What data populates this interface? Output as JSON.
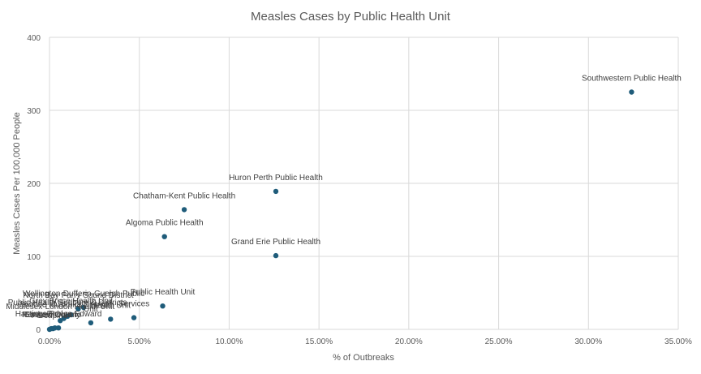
{
  "chart_data": {
    "type": "scatter",
    "title": "Measles Cases by Public Health Unit",
    "xlabel": "% of Outbreaks",
    "ylabel": "Measles Cases Per 100,000 People",
    "xlim": [
      0,
      0.35
    ],
    "ylim": [
      0,
      400
    ],
    "x_ticks": [
      0,
      0.05,
      0.1,
      0.15,
      0.2,
      0.25,
      0.3,
      0.35
    ],
    "x_tick_labels": [
      "0.00%",
      "5.00%",
      "10.00%",
      "15.00%",
      "20.00%",
      "25.00%",
      "30.00%",
      "35.00%"
    ],
    "y_ticks": [
      0,
      100,
      200,
      300,
      400
    ],
    "y_tick_labels": [
      "0",
      "100",
      "200",
      "300",
      "400"
    ],
    "grid": "vertical and horizontal",
    "marker_color": "#1f5c7a",
    "points": [
      {
        "x": 0.324,
        "y": 325,
        "label": "Southwestern Public Health"
      },
      {
        "x": 0.126,
        "y": 189,
        "label": "Huron Perth Public Health"
      },
      {
        "x": 0.075,
        "y": 164,
        "label": "Chatham-Kent Public Health"
      },
      {
        "x": 0.064,
        "y": 127,
        "label": "Algoma Public Health"
      },
      {
        "x": 0.126,
        "y": 101,
        "label": "Grand Erie Public Health"
      },
      {
        "x": 0.063,
        "y": 32,
        "label": "Public Health Unit"
      },
      {
        "x": 0.047,
        "y": 16,
        "label": "Services"
      },
      {
        "x": 0.034,
        "y": 14,
        "label": "Health Unit"
      },
      {
        "x": 0.023,
        "y": 9,
        "label": "Unit"
      },
      {
        "x": 0.016,
        "y": 28,
        "label": "North Bay Parry Sound District"
      },
      {
        "x": 0.019,
        "y": 30,
        "label": "Wellington-Dufferin-Guelph Public"
      },
      {
        "x": 0.012,
        "y": 20,
        "label": "Grey Bruce Health Unit"
      },
      {
        "x": 0.01,
        "y": 18,
        "label": "Public Health Sudbury & Districts"
      },
      {
        "x": 0.008,
        "y": 15,
        "label": "Simcoe Muskoka District"
      },
      {
        "x": 0.006,
        "y": 12,
        "label": "Middlesex-London Health Unit"
      },
      {
        "x": 0.005,
        "y": 2,
        "label": "Hastings Prince Edward"
      },
      {
        "x": 0.003,
        "y": 2,
        "label": "Peel"
      },
      {
        "x": 0.002,
        "y": 1,
        "label": "Eastern Ontario"
      },
      {
        "x": 0.001,
        "y": 1,
        "label": "Renfrew County"
      },
      {
        "x": 0.0,
        "y": 0,
        "label": "Porcupine"
      }
    ]
  }
}
